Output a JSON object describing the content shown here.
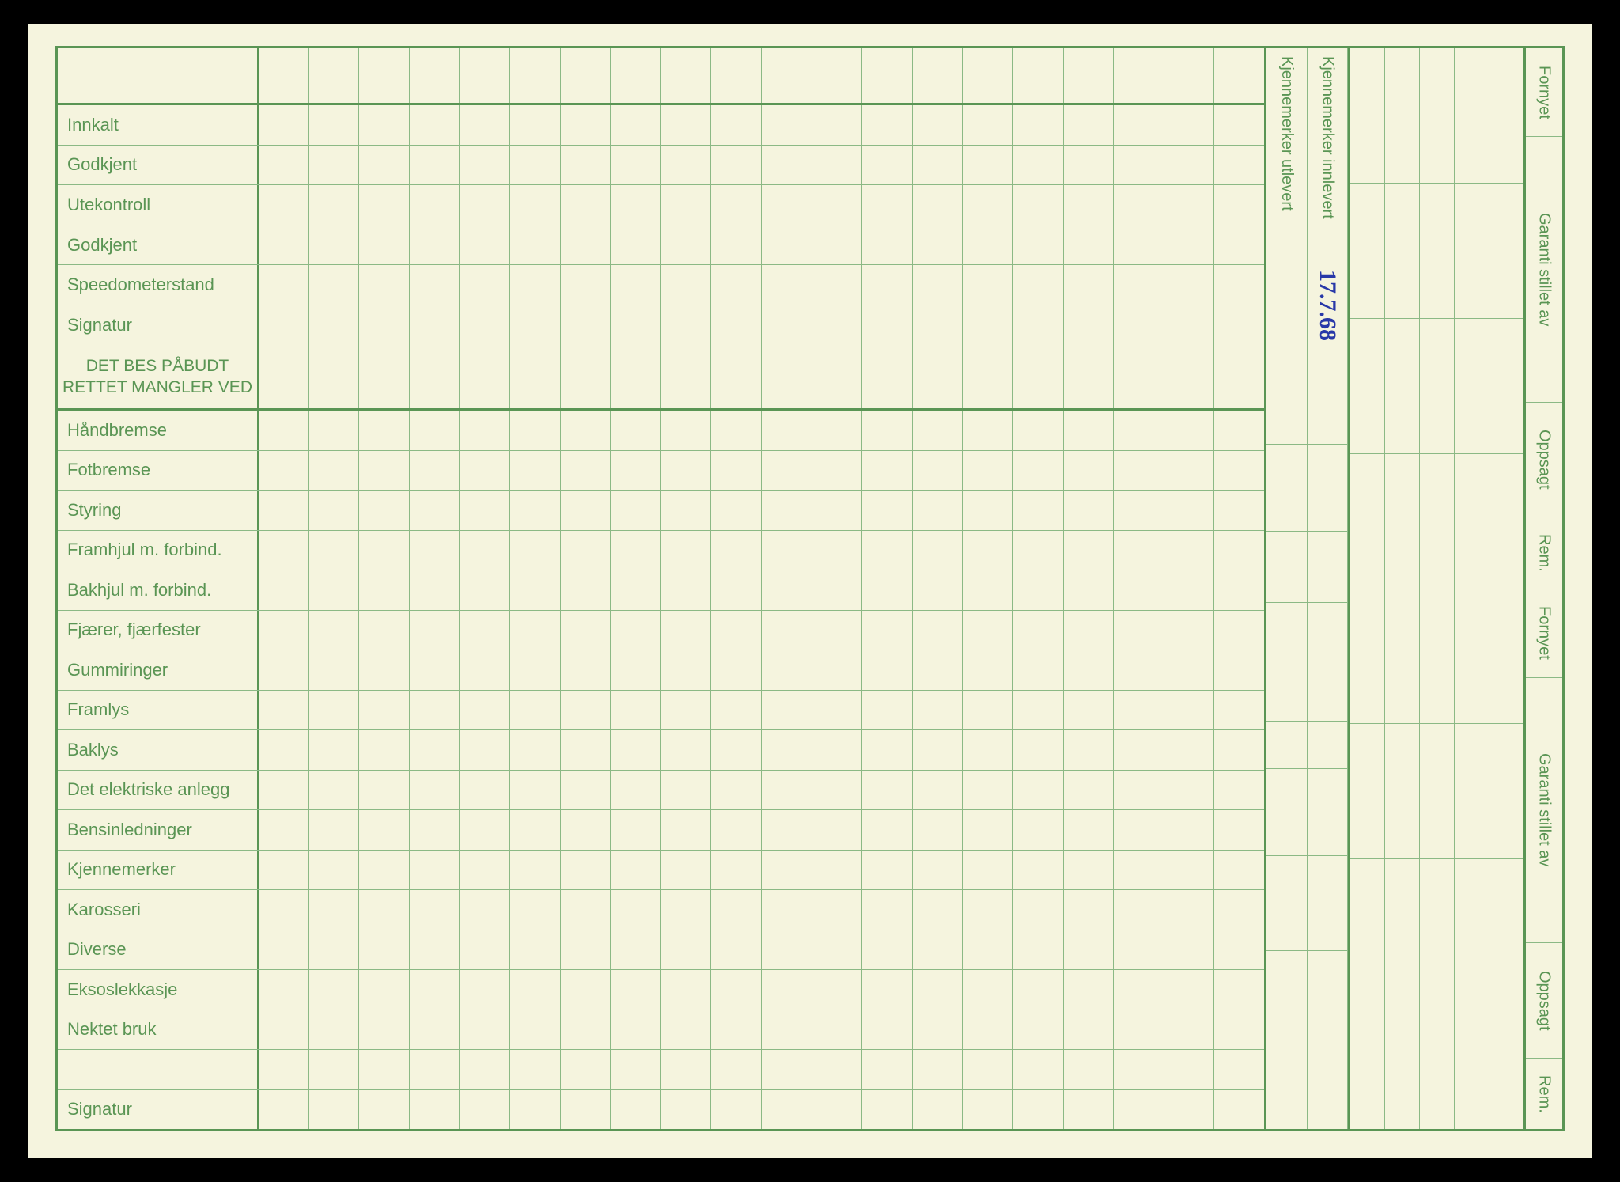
{
  "colors": {
    "paper": "#f5f4de",
    "ink": "#5a9554",
    "grid_light": "#8bb985",
    "handwriting": "#2838a8",
    "border_black": "#000000"
  },
  "typography": {
    "label_fontsize": 22,
    "header_fontsize": 21,
    "vertical_fontsize": 20,
    "handwriting_fontsize": 30
  },
  "left_rows": [
    "Innkalt",
    "Godkjent",
    "Utekontroll",
    "Godkjent",
    "Speedometerstand",
    "Signatur"
  ],
  "section_header": "DET BES PÅBUDT RETTET MANGLER VED",
  "defect_rows": [
    "Håndbremse",
    "Fotbremse",
    "Styring",
    "Framhjul m. forbind.",
    "Bakhjul m. forbind.",
    "Fjærer, fjærfester",
    "Gummiringer",
    "Framlys",
    "Baklys",
    "Det elektriske anlegg",
    "Bensinledninger",
    "Kjennemerker",
    "Karosseri",
    "Diverse",
    "Eksoslekkasje",
    "Nektet bruk",
    "",
    "Signatur"
  ],
  "data_column_count": 20,
  "mid_columns": [
    "Kjennemerker utlevert",
    "Kjennemerker innlevert"
  ],
  "handwritten_note": "17.7.68",
  "right_grid_columns": 5,
  "right_labels_group": [
    "Fornyet",
    "Garanti stillet av",
    "Oppsagt",
    "Rem."
  ],
  "right_label_heights": [
    1,
    3,
    1.3,
    0.8
  ]
}
